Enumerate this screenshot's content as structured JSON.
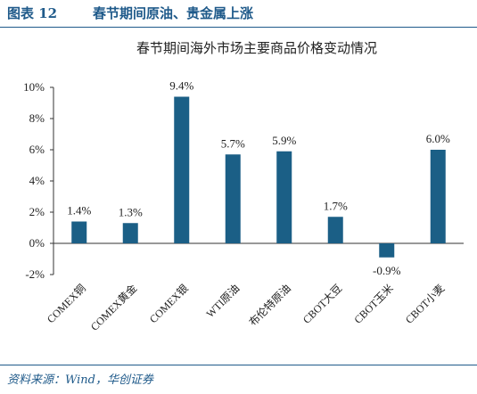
{
  "header": {
    "figure_number": "图表 12",
    "title": "春节期间原油、贵金属上涨"
  },
  "source": "资料来源：Wind，华创证券",
  "colors": {
    "accent": "#1f5a8a",
    "bar": "#1b5f86"
  },
  "chart_data": {
    "type": "bar",
    "title": "春节期间海外市场主要商品价格变动情况",
    "categories": [
      "COMEX铜",
      "COMEX黄金",
      "COMEX银",
      "WTI原油",
      "布伦特原油",
      "CBOT大豆",
      "CBOT玉米",
      "CBOT小麦"
    ],
    "values": [
      1.4,
      1.3,
      9.4,
      5.7,
      5.9,
      1.7,
      -0.9,
      6.0
    ],
    "data_labels": [
      "1.4%",
      "1.3%",
      "9.4%",
      "5.7%",
      "5.9%",
      "1.7%",
      "-0.9%",
      "6.0%"
    ],
    "y_ticks": [
      -2,
      0,
      2,
      4,
      6,
      8,
      10
    ],
    "y_tick_labels": [
      "-2%",
      "0%",
      "2%",
      "4%",
      "6%",
      "8%",
      "10%"
    ],
    "ylim": [
      -2,
      10
    ],
    "grid": false,
    "legend": false
  }
}
